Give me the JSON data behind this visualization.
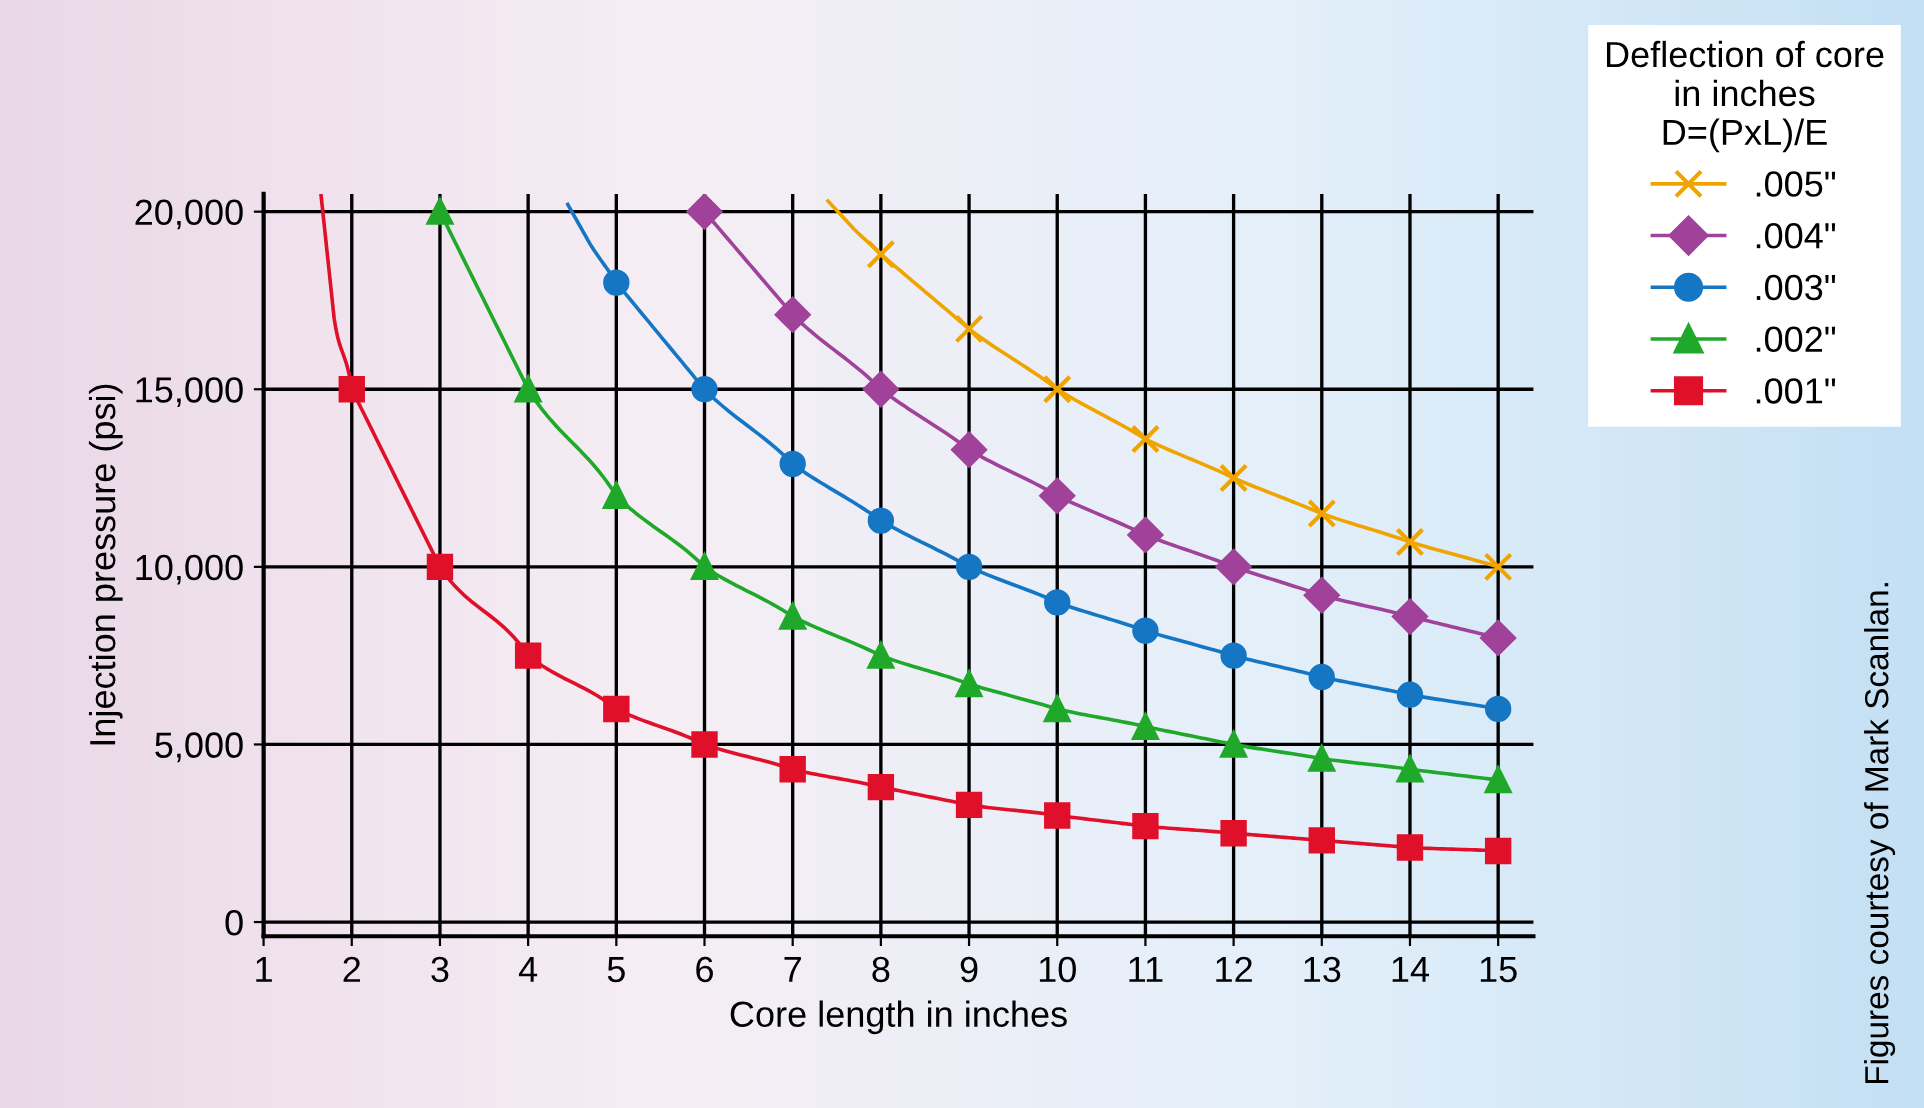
{
  "chart_data": {
    "type": "line",
    "xlabel": "Core length in inches",
    "ylabel": "Injection pressure (psi)",
    "legend_title": "Deflection of core\nin inches\nD=(PxL)/E",
    "annotations": [
      "Figures courtesy of Mark Scanlan."
    ],
    "xlim": [
      1,
      15.4
    ],
    "ylim": [
      -400,
      20500
    ],
    "xticks": [
      1,
      2,
      3,
      4,
      5,
      6,
      7,
      8,
      9,
      10,
      11,
      12,
      13,
      14,
      15
    ],
    "yticks": [
      0,
      {
        "value": 5000,
        "label": "5,000"
      },
      {
        "value": 10000,
        "label": "10,000"
      },
      {
        "value": 15000,
        "label": "15,000"
      },
      {
        "value": 20000,
        "label": "20,000"
      }
    ],
    "grid": true,
    "legend": "right",
    "series": [
      {
        "name": ".005\"",
        "color": "#f0a400",
        "marker": "cross",
        "x": [
          8,
          9,
          10,
          11,
          12,
          13,
          14,
          15
        ],
        "values": [
          18800,
          16700,
          15000,
          13600,
          12500,
          11500,
          10700,
          10000
        ]
      },
      {
        "name": ".004\"",
        "color": "#a0429a",
        "marker": "diamond",
        "x": [
          6,
          7,
          8,
          9,
          10,
          11,
          12,
          13,
          14,
          15
        ],
        "values": [
          20000,
          17100,
          15000,
          13300,
          12000,
          10900,
          10000,
          9200,
          8600,
          8000
        ]
      },
      {
        "name": ".003\"",
        "color": "#1577c4",
        "marker": "circle",
        "x": [
          5,
          6,
          7,
          8,
          9,
          10,
          11,
          12,
          13,
          14,
          15
        ],
        "values": [
          18000,
          15000,
          12900,
          11300,
          10000,
          9000,
          8200,
          7500,
          6900,
          6400,
          6000
        ]
      },
      {
        "name": ".002\"",
        "color": "#1fa82a",
        "marker": "triangle",
        "x": [
          3,
          4,
          5,
          6,
          7,
          8,
          9,
          10,
          11,
          12,
          13,
          14,
          15
        ],
        "values": [
          20000,
          15000,
          12000,
          10000,
          8600,
          7500,
          6700,
          6000,
          5500,
          5000,
          4600,
          4300,
          4000
        ]
      },
      {
        "name": ".001\"",
        "color": "#e0102a",
        "marker": "square",
        "x": [
          2,
          3,
          4,
          5,
          6,
          7,
          8,
          9,
          10,
          11,
          12,
          13,
          14,
          15
        ],
        "values": [
          15000,
          10000,
          7500,
          6000,
          5000,
          4300,
          3800,
          3300,
          3000,
          2700,
          2500,
          2300,
          2100,
          2000
        ]
      },
      {
        "color": "#f0a400",
        "marker": "none",
        "x": [
          7.4,
          7.7,
          8
        ],
        "values": [
          20300,
          19500,
          18800
        ]
      },
      {
        "color": "#1577c4",
        "marker": "none",
        "x": [
          4.45,
          4.7,
          5
        ],
        "values": [
          20200,
          19100,
          18000
        ]
      },
      {
        "color": "#e0102a",
        "marker": "none",
        "x": [
          1.65,
          1.8,
          2
        ],
        "values": [
          20500,
          17000,
          15000
        ]
      }
    ]
  }
}
